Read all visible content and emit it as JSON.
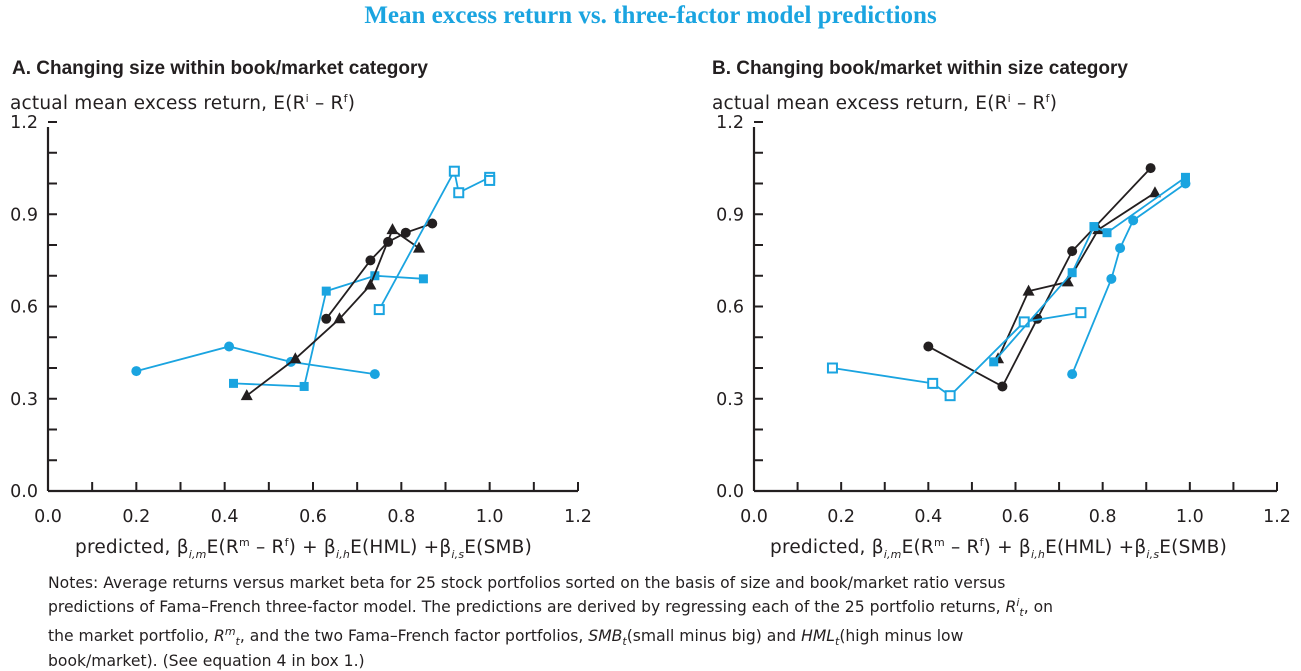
{
  "title": "Mean excess return vs. three-factor model predictions",
  "colors": {
    "title": "#1aa4e0",
    "blue": "#1aa4e0",
    "black": "#231f20"
  },
  "axis_text": {
    "ylabel_text": "actual mean excess return, E(R",
    "ylabel_sup_i": "i",
    "ylabel_mid": " – R",
    "ylabel_sup_f": "f",
    "ylabel_end": ")",
    "xlabel_text": "predicted, β",
    "xlabel_sub1": "i,m",
    "xlabel_p1": "E(R",
    "xlabel_sup_m": "m",
    "xlabel_p2": " – R",
    "xlabel_sup_f": "f",
    "xlabel_p3": ") + β",
    "xlabel_sub2": "i,h",
    "xlabel_p4": "E(HML) +β",
    "xlabel_sub3": "i,s",
    "xlabel_p5": "E(SMB)"
  },
  "notes": {
    "p1": "Notes: Average returns versus market beta for 25 stock portfolios sorted on the basis of size and book/market ratio versus predictions of Fama–French three-factor model. The predictions are derived by regressing each of the 25 portfolio returns, ",
    "r_i": "R",
    "r_i_sup": "i",
    "r_i_sub": "t",
    "p2": ", on the market portfolio, ",
    "r_m": "R",
    "r_m_sup": "m",
    "r_m_sub": "t",
    "p3": ", and the two Fama–French factor portfolios, ",
    "smb": "SMB",
    "smb_sub": "t",
    "p4": "(small minus big) and ",
    "hml": "HML",
    "hml_sub": "t",
    "p5": "(high minus low book/market). (See equation 4 in box 1.)"
  },
  "chart_data": [
    {
      "type": "line",
      "title": "A. Changing size within book/market category",
      "ylabel": "actual mean excess return, E(Ri – Rf)",
      "xlabel": "predicted, βi,mE(Rm – Rf) + βi,hE(HML) +βi,sE(SMB)",
      "xlim": [
        0.0,
        1.2
      ],
      "ylim": [
        0.0,
        1.2
      ],
      "xticks": [
        "0.0",
        "0.2",
        "0.4",
        "0.6",
        "0.8",
        "1.0",
        "1.2"
      ],
      "yticks": [
        "0.0",
        "0.3",
        "0.6",
        "0.9",
        "1.2"
      ],
      "series": [
        {
          "marker": "circle",
          "color": "#1aa4e0",
          "points": [
            [
              0.2,
              0.39
            ],
            [
              0.41,
              0.47
            ],
            [
              0.55,
              0.42
            ],
            [
              0.74,
              0.38
            ]
          ]
        },
        {
          "marker": "square",
          "color": "#1aa4e0",
          "points": [
            [
              0.42,
              0.35
            ],
            [
              0.58,
              0.34
            ],
            [
              0.63,
              0.65
            ],
            [
              0.74,
              0.7
            ],
            [
              0.85,
              0.69
            ]
          ]
        },
        {
          "marker": "triangle",
          "color": "#231f20",
          "points": [
            [
              0.45,
              0.31
            ],
            [
              0.56,
              0.43
            ],
            [
              0.66,
              0.56
            ],
            [
              0.73,
              0.67
            ],
            [
              0.78,
              0.85
            ],
            [
              0.84,
              0.79
            ]
          ]
        },
        {
          "marker": "circle",
          "color": "#231f20",
          "points": [
            [
              0.63,
              0.56
            ],
            [
              0.73,
              0.75
            ],
            [
              0.77,
              0.81
            ],
            [
              0.81,
              0.84
            ],
            [
              0.87,
              0.87
            ]
          ]
        },
        {
          "marker": "open-square",
          "color": "#1aa4e0",
          "points": [
            [
              0.75,
              0.59
            ],
            [
              0.92,
              1.04
            ],
            [
              0.93,
              0.97
            ],
            [
              1.0,
              1.02
            ],
            [
              1.0,
              1.01
            ]
          ]
        }
      ]
    },
    {
      "type": "line",
      "title": "B. Changing book/market within size category",
      "ylabel": "actual mean excess return, E(Ri – Rf)",
      "xlabel": "predicted, βi,mE(Rm – Rf) + βi,hE(HML) +βi,sE(SMB)",
      "xlim": [
        0.0,
        1.2
      ],
      "ylim": [
        0.0,
        1.2
      ],
      "xticks": [
        "0.0",
        "0.2",
        "0.4",
        "0.6",
        "0.8",
        "1.0",
        "1.2"
      ],
      "yticks": [
        "0.0",
        "0.3",
        "0.6",
        "0.9",
        "1.2"
      ],
      "series": [
        {
          "marker": "circle",
          "color": "#231f20",
          "points": [
            [
              0.4,
              0.47
            ],
            [
              0.57,
              0.34
            ],
            [
              0.65,
              0.56
            ],
            [
              0.73,
              0.78
            ],
            [
              0.91,
              1.05
            ]
          ]
        },
        {
          "marker": "triangle",
          "color": "#231f20",
          "points": [
            [
              0.56,
              0.43
            ],
            [
              0.63,
              0.65
            ],
            [
              0.72,
              0.68
            ],
            [
              0.79,
              0.85
            ],
            [
              0.92,
              0.97
            ]
          ]
        },
        {
          "marker": "open-square",
          "color": "#1aa4e0",
          "points": [
            [
              0.18,
              0.4
            ],
            [
              0.41,
              0.35
            ],
            [
              0.45,
              0.31
            ],
            [
              0.62,
              0.55
            ],
            [
              0.75,
              0.58
            ]
          ]
        },
        {
          "marker": "square",
          "color": "#1aa4e0",
          "points": [
            [
              0.55,
              0.42
            ],
            [
              0.73,
              0.71
            ],
            [
              0.78,
              0.86
            ],
            [
              0.81,
              0.84
            ],
            [
              0.99,
              1.02
            ]
          ]
        },
        {
          "marker": "circle",
          "color": "#1aa4e0",
          "points": [
            [
              0.73,
              0.38
            ],
            [
              0.82,
              0.69
            ],
            [
              0.84,
              0.79
            ],
            [
              0.87,
              0.88
            ],
            [
              0.99,
              1.0
            ]
          ]
        }
      ]
    }
  ]
}
